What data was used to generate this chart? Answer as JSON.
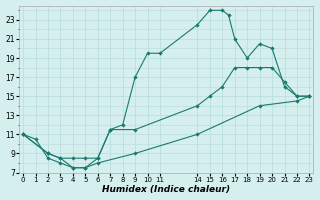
{
  "xlabel": "Humidex (Indice chaleur)",
  "bg_color": "#d5eeee",
  "grid_color": "#b8dcdc",
  "line_color": "#1a7a6e",
  "line1_x": [
    0,
    1,
    2,
    3,
    4,
    5,
    6,
    7,
    8,
    9,
    10,
    11,
    14,
    15,
    16,
    16.5,
    17,
    18,
    19,
    20,
    21,
    22,
    23
  ],
  "line1_y": [
    11,
    10.5,
    8.5,
    8,
    7.5,
    7.5,
    8.5,
    11.5,
    12,
    17,
    19.5,
    19.5,
    22.5,
    24,
    24,
    23.5,
    21,
    19,
    20.5,
    20,
    16,
    15,
    15
  ],
  "line2_x": [
    0,
    2,
    3,
    4,
    5,
    6,
    7,
    9,
    14,
    15,
    16,
    17,
    18,
    19,
    20,
    21,
    22,
    23
  ],
  "line2_y": [
    11,
    9,
    8.5,
    8.5,
    8.5,
    8.5,
    11.5,
    11.5,
    14,
    15,
    16,
    18,
    18,
    18,
    18,
    16.5,
    15,
    15
  ],
  "line3_x": [
    0,
    2,
    3,
    4,
    5,
    6,
    9,
    14,
    19,
    22,
    23
  ],
  "line3_y": [
    11,
    9,
    8.5,
    7.5,
    7.5,
    8,
    9,
    11,
    14,
    14.5,
    15
  ],
  "xlim": [
    -0.3,
    23.3
  ],
  "ylim": [
    7,
    24.5
  ],
  "ytick_positions": [
    7,
    9,
    11,
    13,
    15,
    17,
    19,
    21,
    23
  ],
  "ytick_labels": [
    "7",
    "9",
    "11",
    "13",
    "15",
    "17",
    "19",
    "21",
    "23"
  ],
  "xtick_positions": [
    0,
    1,
    2,
    3,
    4,
    5,
    6,
    7,
    8,
    9,
    10,
    11,
    14,
    15,
    16,
    17,
    18,
    19,
    20,
    21,
    22,
    23
  ],
  "xtick_labels": [
    "0",
    "1",
    "2",
    "3",
    "4",
    "5",
    "6",
    "7",
    "8",
    "9",
    "10",
    "11",
    "14",
    "15",
    "16",
    "17",
    "18",
    "19",
    "20",
    "21",
    "22",
    "23"
  ]
}
